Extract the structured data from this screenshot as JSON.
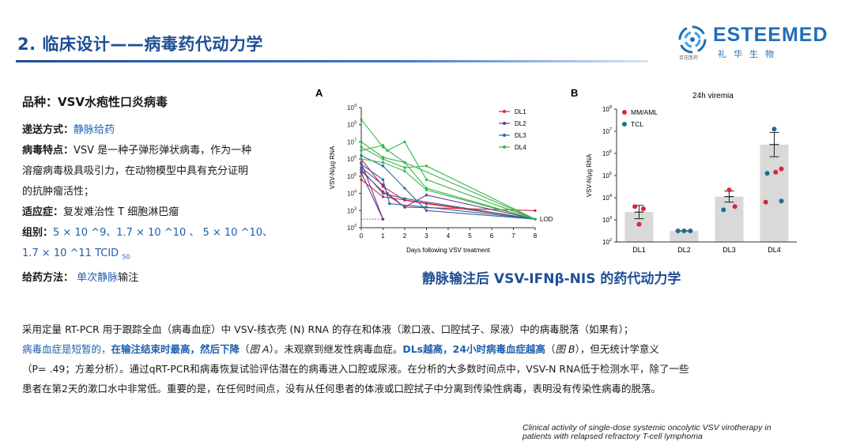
{
  "header": {
    "title": "2. 临床设计——病毒药代动力学",
    "logo": {
      "sub": "百花医药",
      "word": "ESTEEMED",
      "cn": "礼华生物"
    }
  },
  "left": {
    "variety": "品种：VSV水疱性口炎病毒",
    "delivery_label": "递送方式：",
    "delivery_value": "静脉给药",
    "feature_label": "病毒特点：",
    "feature_text_1": "VSV 是一种子弹形弹状病毒，作为一种",
    "feature_text_2": "溶瘤病毒极具吸引力，在动物模型中具有充分证明",
    "feature_text_3": "的抗肿瘤活性；",
    "indication_label": "适应症：",
    "indication_value": "复发难治性 T 细胞淋巴瘤",
    "group_label": "组别：",
    "group_value_1": "5 × 10 ^9、1.7 × 10 ^10 、 5  × 10 ^10、",
    "group_value_2": "1.7 × 10 ^11 TCID ",
    "group_sub": "50",
    "method_label": "给药方法：",
    "method_value_1": "单次静脉",
    "method_value_2": "输注"
  },
  "subtitle": "静脉输注后 VSV-IFNβ-NIS 的药代动力学",
  "paragraph": {
    "l1": "采用定量 RT-PCR 用于跟踪全血（病毒血症）中 VSV-核衣壳 (N) RNA 的存在和体液（漱口液、口腔拭子、尿液）中的病毒脱落（如果有）；",
    "l2a": "病毒血症是短暂的，",
    "l2b": "在输注结束时最高，然后下降",
    "l2c": "（",
    "l2d": "图 A",
    "l2e": "）。未观察到继发性病毒血症。",
    "l2f": "DLs越高，24小时病毒血症越高",
    "l2g": "（",
    "l2h": "图 B",
    "l2i": "），但无统计学意义",
    "l3": "（P= .49；方差分析）。通过qRT-PCR和病毒恢复试验评估潜在的病毒进入口腔或尿液。在分析的大多数时间点中，VSV-N RNA低于检测水平，除了一些",
    "l4": "患者在第2天的漱口水中非常低。重要的是，在任何时间点，没有从任何患者的体液或口腔拭子中分离到传染性病毒，表明没有传染性病毒的脱落。"
  },
  "citation": {
    "l1": "Clinical activity of single-dose systemic oncolytic VSV virotherapy in",
    "l2": "patients with relapsed refractory T-cell lymphoma"
  },
  "chart_data": [
    {
      "type": "line",
      "panel_label": "A",
      "xlabel": "Days following VSV treatment",
      "ylabel": "VSV-N/μg RNA",
      "yscale": "log",
      "ylim_log10": [
        2,
        9
      ],
      "x_ticks": [
        0,
        1,
        2,
        3,
        4,
        5,
        6,
        7,
        8
      ],
      "y_ticks_log10": [
        2,
        3,
        4,
        5,
        6,
        7,
        8,
        9
      ],
      "y_ticks_labels": [
        "10",
        "10",
        "10",
        "10",
        "10",
        "10",
        "10",
        "10"
      ],
      "lod_label": "LOD",
      "lod_log10": 2.5,
      "series": [
        {
          "name": "DL1",
          "color": "#d6263a",
          "lines": [
            {
              "x": [
                0,
                1,
                2,
                8
              ],
              "y": [
                5.3,
                4.1,
                3.2,
                3.0
              ]
            },
            {
              "x": [
                0,
                1,
                2,
                3,
                8
              ],
              "y": [
                6.0,
                4.4,
                3.6,
                3.4,
                2.5
              ]
            },
            {
              "x": [
                0,
                1,
                8
              ],
              "y": [
                4.8,
                3.8,
                2.5
              ]
            }
          ]
        },
        {
          "name": "DL2",
          "color": "#6b3b8f",
          "lines": [
            {
              "x": [
                0,
                1
              ],
              "y": [
                5.8,
                2.5
              ]
            },
            {
              "x": [
                0,
                1,
                1.2,
                2,
                3,
                8
              ],
              "y": [
                5.5,
                4.5,
                4.0,
                3.2,
                3.9,
                2.5
              ]
            },
            {
              "x": [
                0,
                1
              ],
              "y": [
                5.2,
                2.5
              ]
            }
          ]
        },
        {
          "name": "DL3",
          "color": "#2d6aa3",
          "lines": [
            {
              "x": [
                0,
                1,
                2,
                3,
                8
              ],
              "y": [
                6.2,
                5.6,
                4.3,
                3.0,
                2.5
              ]
            },
            {
              "x": [
                0,
                1,
                1.3,
                3,
                8
              ],
              "y": [
                5.7,
                4.8,
                3.4,
                3.2,
                2.5
              ]
            },
            {
              "x": [
                0,
                1,
                2,
                8
              ],
              "y": [
                5.4,
                4.0,
                3.7,
                2.5
              ]
            }
          ]
        },
        {
          "name": "DL4",
          "color": "#3cb54a",
          "lines": [
            {
              "x": [
                0,
                1,
                2,
                8
              ],
              "y": [
                8.3,
                6.7,
                5.8,
                2.5
              ]
            },
            {
              "x": [
                0,
                1,
                2,
                3,
                8
              ],
              "y": [
                7.0,
                6.1,
                5.8,
                4.3,
                2.5
              ]
            },
            {
              "x": [
                0,
                1,
                2,
                3,
                8
              ],
              "y": [
                6.7,
                6.0,
                5.5,
                5.6,
                2.5
              ]
            },
            {
              "x": [
                0,
                1,
                1.2,
                2,
                3,
                8
              ],
              "y": [
                6.5,
                6.8,
                6.5,
                7.0,
                4.8,
                2.5
              ]
            },
            {
              "x": [
                0,
                1,
                2,
                3,
                8
              ],
              "y": [
                6.0,
                5.8,
                5.3,
                4.2,
                2.5
              ]
            }
          ]
        }
      ]
    },
    {
      "type": "bar",
      "panel_label": "B",
      "title": "24h viremia",
      "ylabel": "VSV-N/μg RNA",
      "yscale": "log",
      "ylim_log10": [
        2,
        8
      ],
      "categories": [
        "DL1",
        "DL2",
        "DL3",
        "DL4"
      ],
      "values_log10": [
        3.35,
        2.5,
        4.05,
        6.4
      ],
      "error_log10": [
        0.3,
        0,
        0.25,
        0.55
      ],
      "y_ticks_log10": [
        2,
        3,
        4,
        5,
        6,
        7,
        8
      ],
      "y_ticks_labels": [
        "10",
        "10",
        "10",
        "10",
        "10",
        "10",
        "10"
      ],
      "legend": [
        {
          "name": "MM/AML",
          "color": "#d6263a"
        },
        {
          "name": "TCL",
          "color": "#1f6d8c"
        }
      ],
      "points": [
        {
          "cat": 0,
          "dx": -0.15,
          "y": 3.6,
          "group": 0
        },
        {
          "cat": 0,
          "dx": 0.15,
          "y": 3.5,
          "group": 0
        },
        {
          "cat": 0,
          "dx": 0.0,
          "y": 2.8,
          "group": 0
        },
        {
          "cat": 1,
          "dx": -0.22,
          "y": 2.5,
          "group": 1
        },
        {
          "cat": 1,
          "dx": 0.0,
          "y": 2.5,
          "group": 1
        },
        {
          "cat": 1,
          "dx": 0.22,
          "y": 2.5,
          "group": 1
        },
        {
          "cat": 2,
          "dx": 0.0,
          "y": 4.35,
          "group": 0
        },
        {
          "cat": 2,
          "dx": -0.2,
          "y": 3.45,
          "group": 1
        },
        {
          "cat": 2,
          "dx": 0.2,
          "y": 3.6,
          "group": 0
        },
        {
          "cat": 3,
          "dx": 0.0,
          "y": 7.1,
          "group": 1
        },
        {
          "cat": 3,
          "dx": 0.25,
          "y": 5.3,
          "group": 0
        },
        {
          "cat": 3,
          "dx": -0.25,
          "y": 5.1,
          "group": 1
        },
        {
          "cat": 3,
          "dx": 0.05,
          "y": 5.15,
          "group": 0
        },
        {
          "cat": 3,
          "dx": -0.3,
          "y": 3.8,
          "group": 0
        },
        {
          "cat": 3,
          "dx": 0.25,
          "y": 3.85,
          "group": 1
        }
      ]
    }
  ]
}
